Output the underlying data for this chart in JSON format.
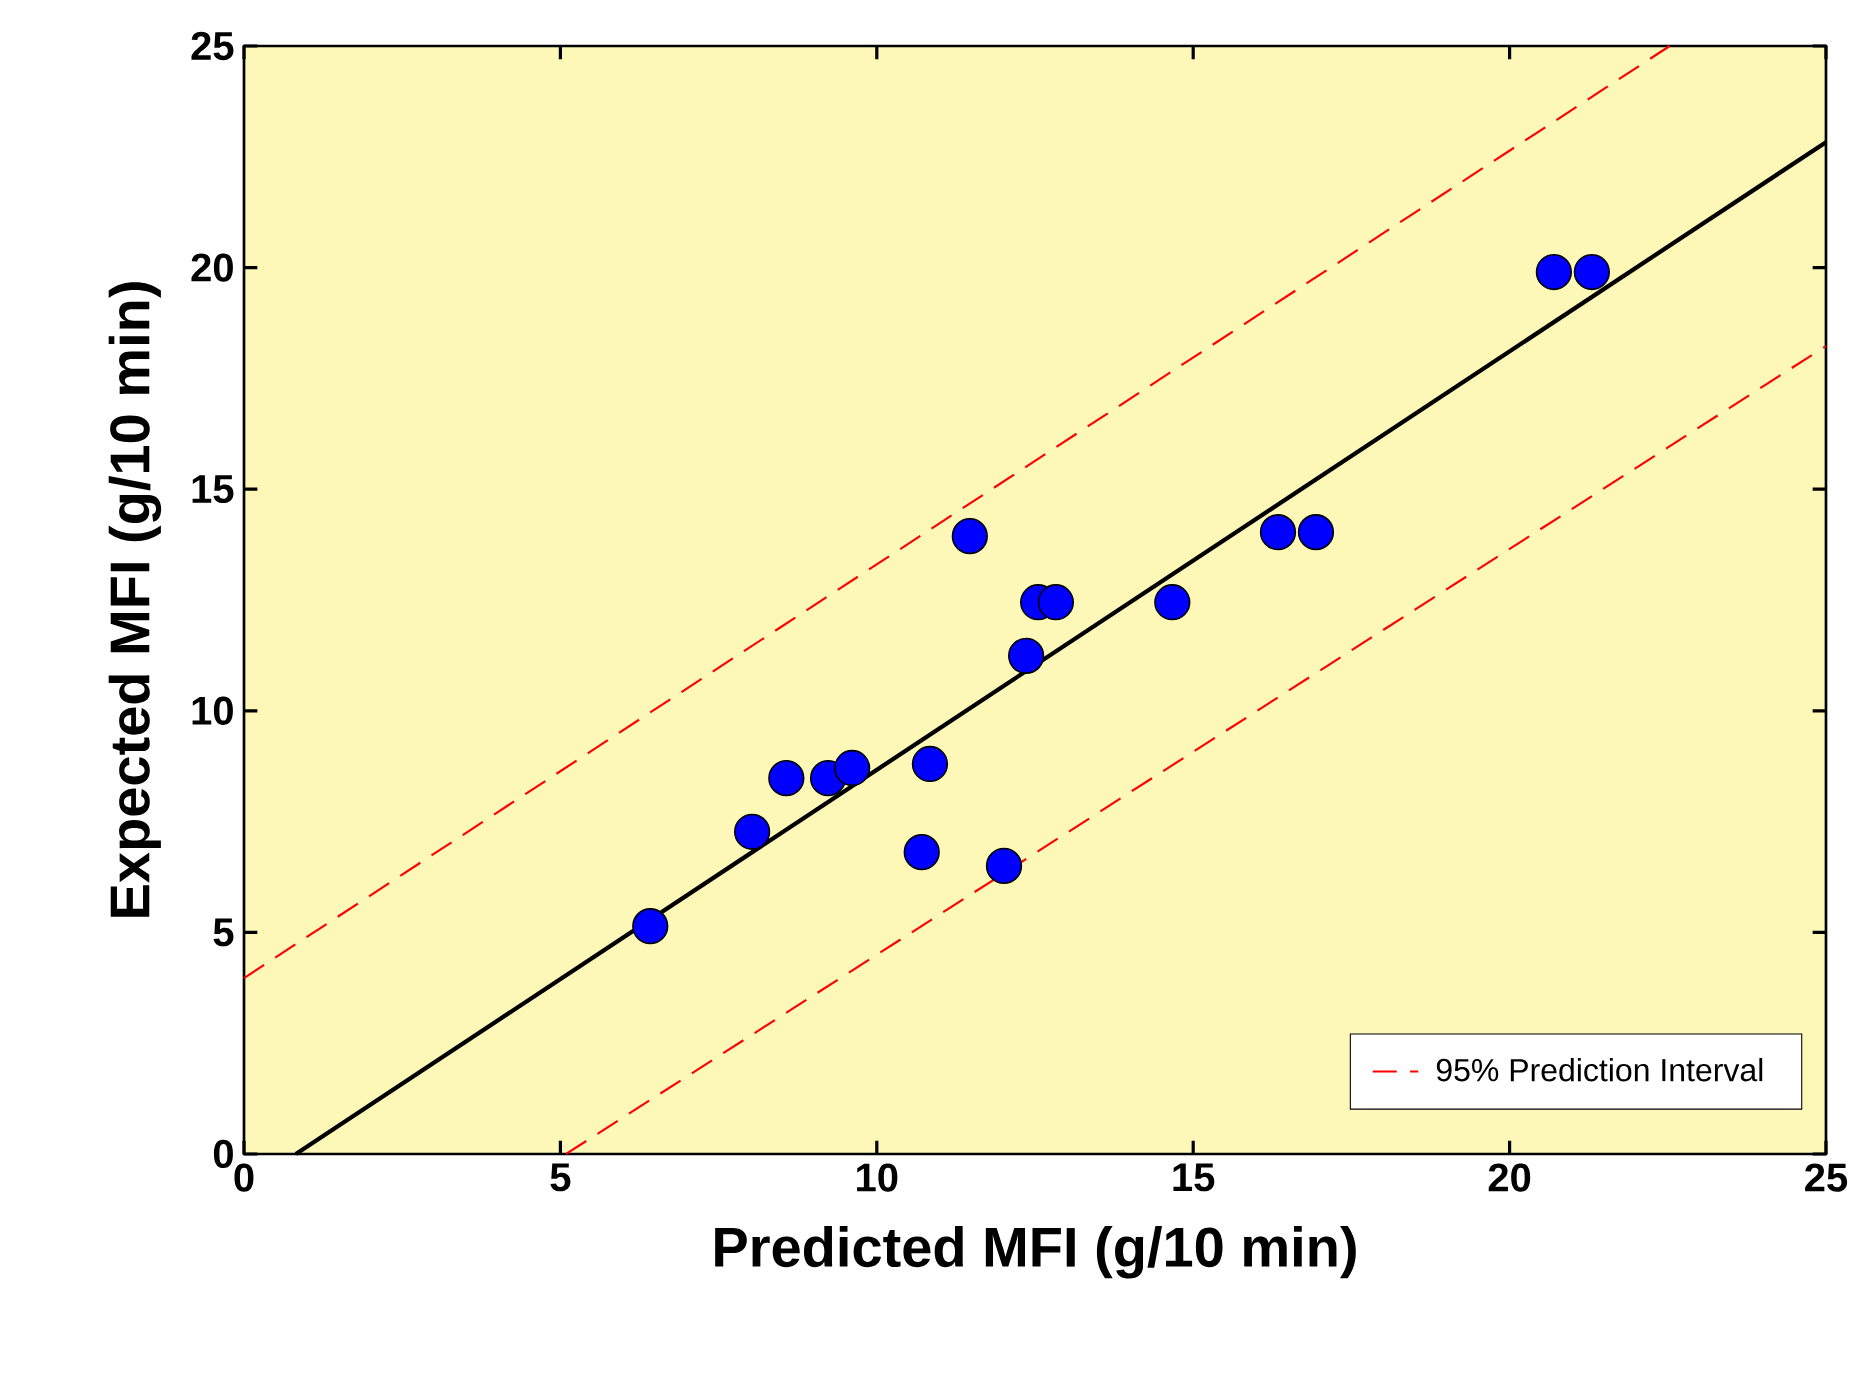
{
  "chart_data": {
    "type": "scatter",
    "xlabel": "Predicted MFI (g/10 min)",
    "ylabel": "Expected MFI (g/10 min)",
    "xlim": [
      0,
      25
    ],
    "ylim": [
      0,
      25
    ],
    "xticks": [
      0,
      5,
      10,
      15,
      20,
      25
    ],
    "yticks": [
      0,
      5,
      10,
      15,
      20,
      25
    ],
    "grid": false,
    "legend": "bottom right",
    "series": [
      {
        "type": "line",
        "color": "#000000",
        "marker": "none",
        "line_style": "solid",
        "x": [
          0.82,
          25
        ],
        "values": [
          0,
          22.83
        ]
      },
      {
        "type": "line",
        "name": "95% Prediction Interval",
        "color": "#ff0000",
        "marker": "none",
        "line_style": "dashed",
        "x": [
          0,
          22.53
        ],
        "values": [
          3.97,
          25
        ]
      },
      {
        "type": "line",
        "color": "#ff0000",
        "marker": "none",
        "line_style": "dashed",
        "x": [
          5.09,
          25
        ],
        "values": [
          0,
          18.23
        ]
      },
      {
        "color": "#0000ff",
        "marker": "circle",
        "x": [
          6.42,
          8.03,
          8.57,
          9.23,
          9.61,
          10.84,
          10.71,
          12.01,
          11.47,
          12.36,
          12.55,
          12.83,
          14.67,
          16.34,
          16.94,
          20.7,
          21.3
        ],
        "values": [
          5.14,
          7.27,
          8.48,
          8.48,
          8.71,
          8.8,
          6.81,
          6.5,
          13.94,
          11.24,
          12.45,
          12.45,
          12.45,
          14.03,
          14.03,
          19.9,
          19.9
        ]
      }
    ]
  }
}
